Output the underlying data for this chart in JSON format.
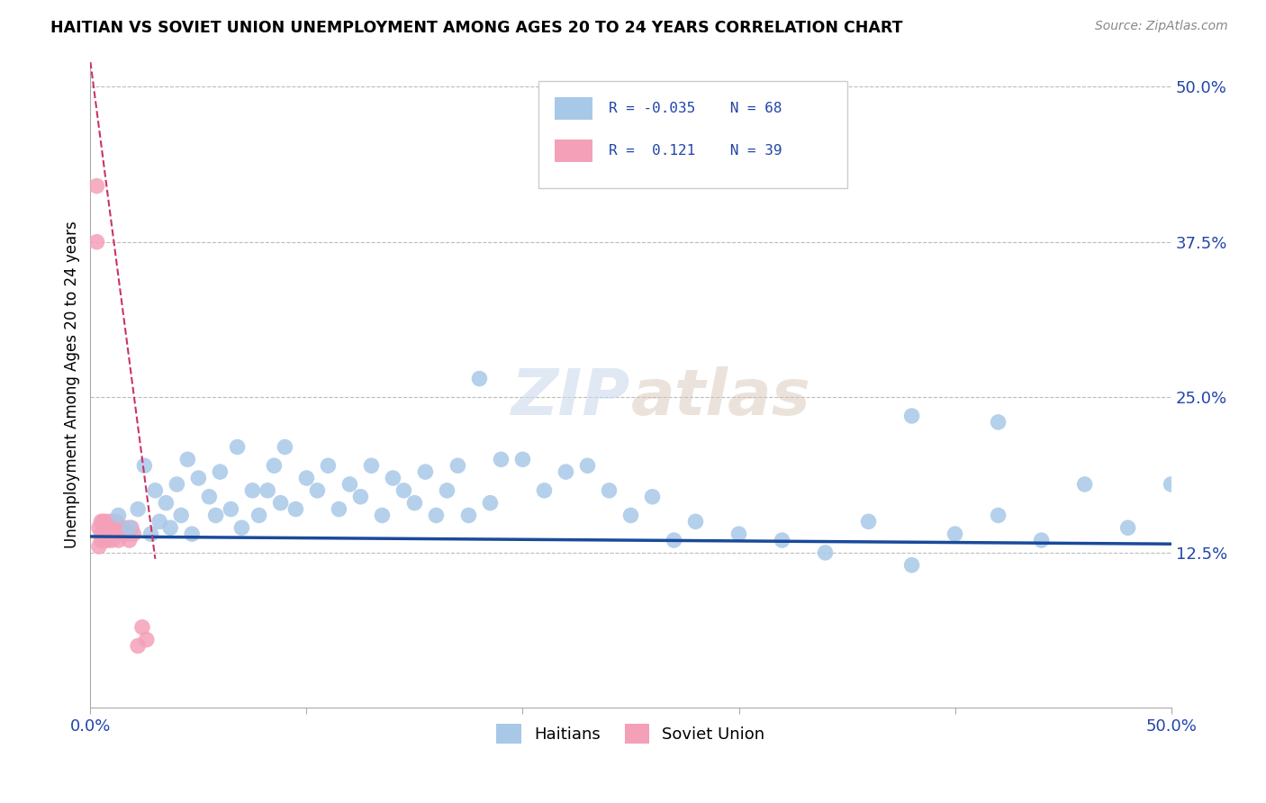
{
  "title": "HAITIAN VS SOVIET UNION UNEMPLOYMENT AMONG AGES 20 TO 24 YEARS CORRELATION CHART",
  "source": "Source: ZipAtlas.com",
  "ylabel": "Unemployment Among Ages 20 to 24 years",
  "xlim": [
    0.0,
    0.5
  ],
  "ylim": [
    0.0,
    0.52
  ],
  "legend_blue_r": "-0.035",
  "legend_blue_n": "68",
  "legend_pink_r": "0.121",
  "legend_pink_n": "39",
  "blue_color": "#a8c8e8",
  "pink_color": "#f4a0b8",
  "trend_blue_color": "#1a4a9a",
  "trend_pink_color": "#cc3366",
  "grid_color": "#bbbbbb",
  "blue_points_x": [
    0.013,
    0.018,
    0.022,
    0.025,
    0.028,
    0.03,
    0.032,
    0.035,
    0.037,
    0.04,
    0.042,
    0.045,
    0.047,
    0.05,
    0.055,
    0.058,
    0.06,
    0.065,
    0.068,
    0.07,
    0.075,
    0.078,
    0.082,
    0.085,
    0.088,
    0.09,
    0.095,
    0.1,
    0.105,
    0.11,
    0.115,
    0.12,
    0.125,
    0.13,
    0.135,
    0.14,
    0.145,
    0.15,
    0.155,
    0.16,
    0.165,
    0.17,
    0.175,
    0.18,
    0.185,
    0.19,
    0.2,
    0.21,
    0.22,
    0.23,
    0.24,
    0.25,
    0.26,
    0.27,
    0.28,
    0.3,
    0.32,
    0.34,
    0.36,
    0.38,
    0.4,
    0.42,
    0.44,
    0.46,
    0.48,
    0.5,
    0.38,
    0.42
  ],
  "blue_points_y": [
    0.155,
    0.145,
    0.16,
    0.195,
    0.14,
    0.175,
    0.15,
    0.165,
    0.145,
    0.18,
    0.155,
    0.2,
    0.14,
    0.185,
    0.17,
    0.155,
    0.19,
    0.16,
    0.21,
    0.145,
    0.175,
    0.155,
    0.175,
    0.195,
    0.165,
    0.21,
    0.16,
    0.185,
    0.175,
    0.195,
    0.16,
    0.18,
    0.17,
    0.195,
    0.155,
    0.185,
    0.175,
    0.165,
    0.19,
    0.155,
    0.175,
    0.195,
    0.155,
    0.265,
    0.165,
    0.2,
    0.2,
    0.175,
    0.19,
    0.195,
    0.175,
    0.155,
    0.17,
    0.135,
    0.15,
    0.14,
    0.135,
    0.125,
    0.15,
    0.115,
    0.14,
    0.155,
    0.135,
    0.18,
    0.145,
    0.18,
    0.235,
    0.23
  ],
  "pink_points_x": [
    0.003,
    0.003,
    0.004,
    0.004,
    0.005,
    0.005,
    0.005,
    0.006,
    0.006,
    0.006,
    0.007,
    0.007,
    0.007,
    0.007,
    0.008,
    0.008,
    0.008,
    0.009,
    0.009,
    0.009,
    0.01,
    0.01,
    0.01,
    0.011,
    0.011,
    0.012,
    0.012,
    0.013,
    0.013,
    0.014,
    0.015,
    0.016,
    0.017,
    0.018,
    0.019,
    0.02,
    0.022,
    0.024,
    0.026
  ],
  "pink_points_y": [
    0.42,
    0.375,
    0.145,
    0.13,
    0.15,
    0.14,
    0.135,
    0.145,
    0.14,
    0.15,
    0.145,
    0.14,
    0.135,
    0.15,
    0.145,
    0.14,
    0.135,
    0.145,
    0.14,
    0.15,
    0.14,
    0.145,
    0.135,
    0.145,
    0.14,
    0.15,
    0.14,
    0.145,
    0.135,
    0.145,
    0.14,
    0.145,
    0.14,
    0.135,
    0.145,
    0.14,
    0.05,
    0.065,
    0.055
  ],
  "blue_trend_x": [
    0.0,
    0.5
  ],
  "blue_trend_y": [
    0.138,
    0.132
  ],
  "pink_trend_x": [
    0.0,
    0.03
  ],
  "pink_trend_y": [
    0.52,
    0.12
  ]
}
